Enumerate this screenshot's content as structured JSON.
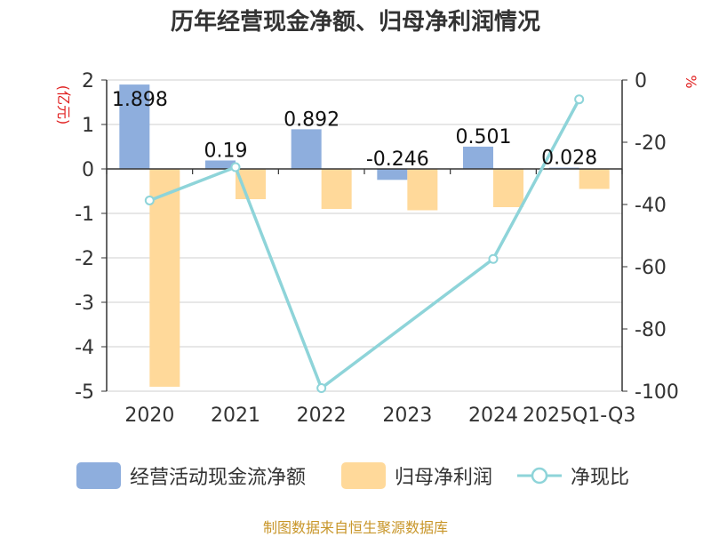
{
  "chart_data": {
    "type": "bar",
    "title": "历年经营现金净额、归母净利润情况",
    "categories": [
      "2020",
      "2021",
      "2022",
      "2023",
      "2024",
      "2025Q1-Q3"
    ],
    "left_axis": {
      "unit": "(亿元)",
      "ylim": [
        -5,
        2
      ],
      "ticks": [
        "2",
        "1",
        "0",
        "-1",
        "-2",
        "-3",
        "-4",
        "-5"
      ]
    },
    "right_axis": {
      "unit": "%",
      "ylim": [
        -100,
        0
      ],
      "ticks": [
        "0",
        "-20",
        "-40",
        "-60",
        "-80",
        "-100"
      ]
    },
    "series": [
      {
        "name": "经营活动现金流净额",
        "kind": "bar",
        "axis": "left",
        "color": "#8eaedd",
        "values": [
          1.898,
          0.19,
          0.892,
          -0.246,
          0.501,
          0.028
        ],
        "labels": [
          "1.898",
          "0.19",
          "0.892",
          "-0.246",
          "0.501",
          "0.028"
        ]
      },
      {
        "name": "归母净利润",
        "kind": "bar",
        "axis": "left",
        "color": "#ffd99a",
        "values": [
          -4.9,
          -0.68,
          -0.9,
          -0.93,
          -0.86,
          -0.45
        ]
      },
      {
        "name": "净现比",
        "kind": "line",
        "axis": "right",
        "color": "#8ed4d9",
        "values": [
          -38.7,
          -28,
          -99,
          null,
          -57.5,
          -6.2
        ]
      }
    ],
    "source": "制图数据来自恒生聚源数据库"
  }
}
